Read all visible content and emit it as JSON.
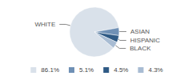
{
  "chart_data": {
    "type": "pie",
    "categories": [
      "WHITE",
      "ASIAN",
      "HISPANIC",
      "BLACK"
    ],
    "values": [
      86.1,
      5.1,
      4.5,
      4.3
    ],
    "value_labels": [
      "86.1%",
      "5.1%",
      "4.5%",
      "4.3%"
    ],
    "colors": [
      "#d9e1ea",
      "#6f90b5",
      "#2f5a85",
      "#a8bcd3"
    ],
    "legend": "bottom"
  }
}
